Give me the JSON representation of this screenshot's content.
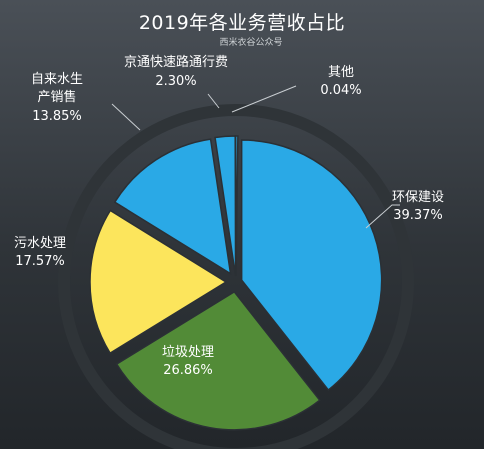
{
  "chart_data": {
    "type": "pie",
    "title": "2019年各业务营收占比",
    "subtitle": "西米衣谷公众号",
    "unit": "%",
    "slices": [
      {
        "name": "环保建设",
        "value": 39.37,
        "label": "39.37%",
        "color": "#2aa9e6"
      },
      {
        "name": "垃圾处理",
        "value": 26.86,
        "label": "26.86%",
        "color": "#528b37"
      },
      {
        "name": "污水处理",
        "value": 17.57,
        "label": "17.57%",
        "color": "#fce55c"
      },
      {
        "name": "自来水生产销售",
        "value": 13.85,
        "label": "13.85%",
        "color": "#2aa9e6"
      },
      {
        "name": "京通快速路通行费",
        "value": 2.3,
        "label": "2.30%",
        "color": "#2aa9e6"
      },
      {
        "name": "其他",
        "value": 0.04,
        "label": "0.04%",
        "color": "#2aa9e6"
      }
    ]
  }
}
